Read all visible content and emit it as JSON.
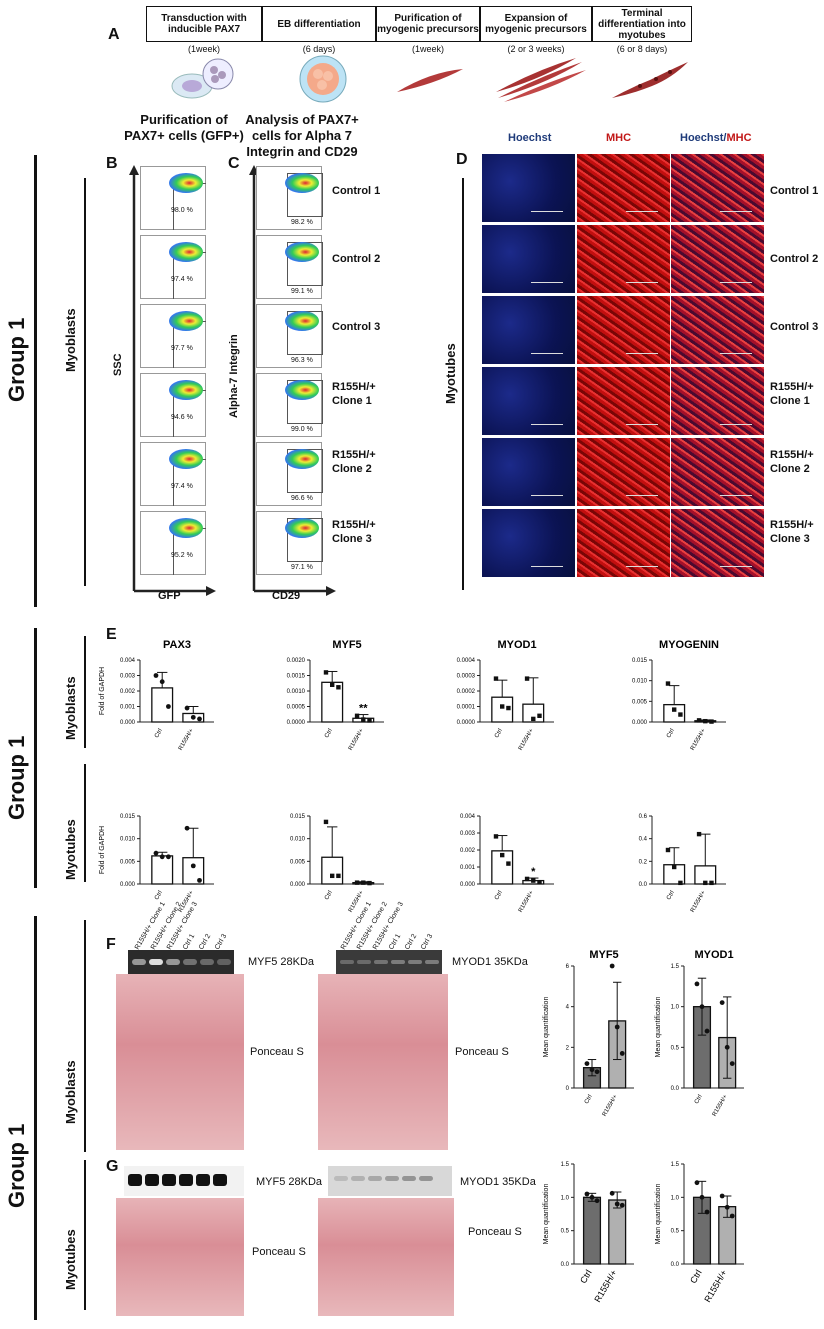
{
  "panel_a": {
    "letter": "A",
    "steps": [
      {
        "label": "Transduction with inducible PAX7",
        "duration": "(1week)"
      },
      {
        "label": "EB differentiation",
        "duration": "(6 days)"
      },
      {
        "label": "Purification of myogenic precursors",
        "duration": "(1week)"
      },
      {
        "label": "Expansion of myogenic precursors",
        "duration": "(2 or 3 weeks)"
      },
      {
        "label": "Terminal differentiation into myotubes",
        "duration": "(6 or 8 days)"
      }
    ]
  },
  "panel_b": {
    "letter": "B",
    "title": "Purification of PAX7+ cells (GFP+)",
    "y_axis": "SSC",
    "x_axis": "GFP",
    "percentages": [
      "98.0 %",
      "97.4 %",
      "97.7 %",
      "94.6 %",
      "97.4 %",
      "95.2 %"
    ]
  },
  "panel_c": {
    "letter": "C",
    "title": "Analysis of PAX7+ cells for Alpha 7 Integrin and CD29",
    "y_axis": "Alpha-7 Integrin",
    "x_axis": "CD29",
    "percentages": [
      "98.2 %",
      "99.1 %",
      "96.3 %",
      "99.0 %",
      "96.6 %",
      "97.1 %"
    ]
  },
  "row_labels": [
    [
      "Control 1"
    ],
    [
      "Control 2"
    ],
    [
      "Control 3"
    ],
    [
      "R155H/+",
      "Clone 1"
    ],
    [
      "R155H/+",
      "Clone 2"
    ],
    [
      "R155H/+",
      "Clone 3"
    ]
  ],
  "panel_d": {
    "letter": "D",
    "col_hoechst": "Hoechst",
    "col_mhc": "MHC",
    "col_merge_a": "Hoechst/",
    "col_merge_b": "MHC",
    "side_label": "Myotubes"
  },
  "group_label": "Group 1",
  "myoblasts_label": "Myoblasts",
  "myotubes_label": "Myotubes",
  "panel_e": {
    "letter": "E",
    "ylabel": "Fold of GAPDH",
    "categories": [
      "Ctrl",
      "R155H/+"
    ]
  },
  "panel_f": {
    "letter": "F",
    "lanes": [
      "R155H/+ Clone 1",
      "R155H/+ Clone 2",
      "R155H/+ Clone 3",
      "Ctrl 1",
      "Ctrl 2",
      "Ctrl 3"
    ],
    "myf5_label": "MYF5 28KDa",
    "myod1_label": "MYOD1 35KDa",
    "ponceau_label": "Ponceau S",
    "ylabel": "Mean quantification"
  },
  "panel_g": {
    "letter": "G",
    "myf5_label": "MYF5 28KDa",
    "myod1_label": "MYOD1 35KDa",
    "ponceau_label": "Ponceau S",
    "ylabel": "Mean quantification",
    "categories": [
      "Ctrl",
      "R155H/+"
    ]
  },
  "chart_data": [
    {
      "type": "bar",
      "id": "e-myo-pax3",
      "title": "PAX3",
      "categories": [
        "Ctrl",
        "R155H/+"
      ],
      "values": [
        0.0022,
        0.00055
      ],
      "errors": [
        0.001,
        0.00045
      ],
      "points": [
        [
          0.003,
          0.0026,
          0.001
        ],
        [
          0.0009,
          0.0003,
          0.0002
        ]
      ],
      "ylim": [
        0,
        0.004
      ],
      "yticks": [
        "0.000",
        "0.001",
        "0.002",
        "0.003",
        "0.004"
      ],
      "ylabel": "Fold of GAPDH",
      "marker": "circle"
    },
    {
      "type": "bar",
      "id": "e-myo-myf5",
      "title": "MYF5",
      "categories": [
        "Ctrl",
        "R155H/+"
      ],
      "values": [
        0.00128,
        0.00012
      ],
      "errors": [
        0.00035,
        0.00012
      ],
      "points": [
        [
          0.0016,
          0.0012,
          0.00112
        ],
        [
          0.0002,
          8e-05,
          5e-05
        ]
      ],
      "ylim": [
        0,
        0.002
      ],
      "yticks": [
        "0.0000",
        "0.0005",
        "0.0010",
        "0.0015",
        "0.0020"
      ],
      "annotation": "**",
      "marker": "square"
    },
    {
      "type": "bar",
      "id": "e-myo-myod1",
      "title": "MYOD1",
      "categories": [
        "Ctrl",
        "R155H/+"
      ],
      "values": [
        0.00016,
        0.000115
      ],
      "errors": [
        0.00011,
        0.00017
      ],
      "points": [
        [
          0.00028,
          0.0001,
          9e-05
        ],
        [
          0.00028,
          2e-05,
          4e-05
        ]
      ],
      "ylim": [
        0,
        0.0004
      ],
      "yticks": [
        "0.0000",
        "0.0001",
        "0.0002",
        "0.0003",
        "0.0004"
      ],
      "marker": "square"
    },
    {
      "type": "bar",
      "id": "e-myo-myog",
      "title": "MYOGENIN",
      "categories": [
        "Ctrl",
        "R155H/+"
      ],
      "values": [
        0.0042,
        0.0003
      ],
      "errors": [
        0.0046,
        0.0002
      ],
      "points": [
        [
          0.0093,
          0.003,
          0.0018
        ],
        [
          0.0004,
          0.0002,
          0.0001
        ]
      ],
      "ylim": [
        0,
        0.015
      ],
      "yticks": [
        "0.000",
        "0.005",
        "0.010",
        "0.015"
      ],
      "marker": "square"
    },
    {
      "type": "bar",
      "id": "e-mt-pax3",
      "title": "",
      "categories": [
        "Ctrl",
        "R155H/+"
      ],
      "values": [
        0.0062,
        0.0058
      ],
      "errors": [
        0.0008,
        0.0065
      ],
      "points": [
        [
          0.0068,
          0.006,
          0.006
        ],
        [
          0.0123,
          0.004,
          0.0008
        ]
      ],
      "ylim": [
        0,
        0.015
      ],
      "yticks": [
        "0.000",
        "0.005",
        "0.010",
        "0.015"
      ],
      "ylabel": "Fold of GAPDH",
      "marker": "circle"
    },
    {
      "type": "bar",
      "id": "e-mt-myf5",
      "title": "",
      "categories": [
        "Ctrl",
        "R155H/+"
      ],
      "values": [
        0.0059,
        0.0003
      ],
      "errors": [
        0.0067,
        0.0002
      ],
      "points": [
        [
          0.0137,
          0.0018,
          0.0018
        ],
        [
          0.0003,
          0.0003,
          0.0002
        ]
      ],
      "ylim": [
        0,
        0.015
      ],
      "yticks": [
        "0.000",
        "0.005",
        "0.010",
        "0.015"
      ],
      "marker": "square"
    },
    {
      "type": "bar",
      "id": "e-mt-myod1",
      "title": "",
      "categories": [
        "Ctrl",
        "R155H/+"
      ],
      "values": [
        0.00195,
        0.0002
      ],
      "errors": [
        0.0009,
        0.00015
      ],
      "points": [
        [
          0.0028,
          0.0017,
          0.0012
        ],
        [
          0.0003,
          0.0002,
          0.0001
        ]
      ],
      "ylim": [
        0,
        0.004
      ],
      "yticks": [
        "0.000",
        "0.001",
        "0.002",
        "0.003",
        "0.004"
      ],
      "annotation": "*",
      "marker": "square"
    },
    {
      "type": "bar",
      "id": "e-mt-myog",
      "title": "",
      "categories": [
        "Ctrl",
        "R155H/+"
      ],
      "values": [
        0.17,
        0.16
      ],
      "errors": [
        0.15,
        0.28
      ],
      "points": [
        [
          0.3,
          0.15,
          0.01
        ],
        [
          0.44,
          0.01,
          0.01
        ]
      ],
      "ylim": [
        0,
        0.6
      ],
      "yticks": [
        "0.0",
        "0.2",
        "0.4",
        "0.6"
      ],
      "marker": "square"
    },
    {
      "type": "bar",
      "id": "f-myf5",
      "title": "MYF5",
      "categories": [
        "Ctrl",
        "R155H/+"
      ],
      "values": [
        1.0,
        3.3
      ],
      "errors": [
        0.4,
        1.9
      ],
      "points": [
        [
          1.2,
          0.9,
          0.8
        ],
        [
          6.0,
          3.0,
          1.7
        ]
      ],
      "ylim": [
        0,
        6
      ],
      "yticks": [
        "0",
        "2",
        "4",
        "6"
      ],
      "ylabel": "Mean quantification",
      "marker": "circle",
      "filled": true
    },
    {
      "type": "bar",
      "id": "f-myod1",
      "title": "MYOD1",
      "categories": [
        "Ctrl",
        "R155H/+"
      ],
      "values": [
        1.0,
        0.62
      ],
      "errors": [
        0.35,
        0.5
      ],
      "points": [
        [
          1.28,
          1.0,
          0.7
        ],
        [
          1.05,
          0.5,
          0.3
        ]
      ],
      "ylim": [
        0,
        1.5
      ],
      "yticks": [
        "0.0",
        "0.5",
        "1.0",
        "1.5"
      ],
      "ylabel": "Mean quantification",
      "marker": "circle",
      "filled": true
    },
    {
      "type": "bar",
      "id": "g-myf5",
      "title": "",
      "categories": [
        "Ctrl",
        "R155H/+"
      ],
      "values": [
        1.0,
        0.96
      ],
      "errors": [
        0.06,
        0.12
      ],
      "points": [
        [
          1.05,
          1.0,
          0.95
        ],
        [
          1.06,
          0.9,
          0.88
        ]
      ],
      "ylim": [
        0,
        1.5
      ],
      "yticks": [
        "0.0",
        "0.5",
        "1.0",
        "1.5"
      ],
      "ylabel": "Mean quantification",
      "marker": "circle",
      "filled": true
    },
    {
      "type": "bar",
      "id": "g-myod1",
      "title": "",
      "categories": [
        "Ctrl",
        "R155H/+"
      ],
      "values": [
        1.0,
        0.86
      ],
      "errors": [
        0.24,
        0.16
      ],
      "points": [
        [
          1.22,
          1.0,
          0.78
        ],
        [
          1.02,
          0.85,
          0.72
        ]
      ],
      "ylim": [
        0,
        1.5
      ],
      "yticks": [
        "0.0",
        "0.5",
        "1.0",
        "1.5"
      ],
      "ylabel": "Mean quantification",
      "marker": "circle",
      "filled": true
    }
  ]
}
